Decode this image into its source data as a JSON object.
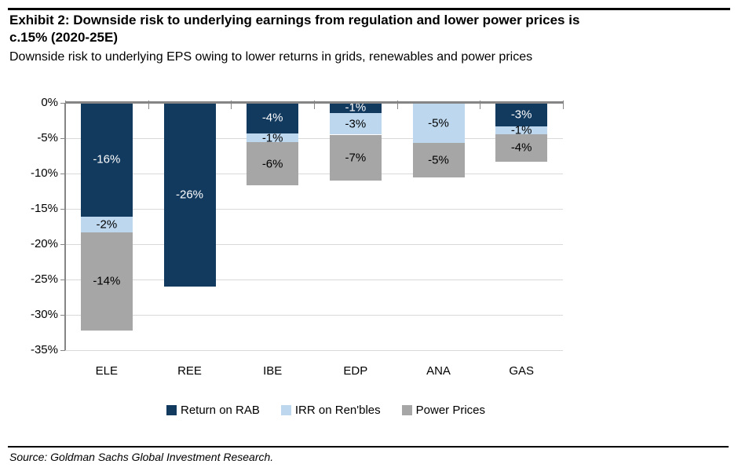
{
  "header": {
    "title_line1": "Exhibit 2: Downside risk to underlying earnings from regulation and lower power prices is",
    "title_line2": "c.15% (2020-25E)",
    "subtitle": "Downside risk to underlying EPS owing to lower returns in grids, renewables and power prices"
  },
  "chart_data": {
    "type": "bar",
    "stacked": true,
    "title": "Downside risk to underlying EPS owing to lower returns in grids, renewables and power prices",
    "categories": [
      "ELE",
      "REE",
      "IBE",
      "EDP",
      "ANA",
      "GAS"
    ],
    "series": [
      {
        "name": "Return on RAB",
        "color": "#12395E",
        "values": [
          -16,
          -26,
          -4,
          -1,
          0,
          -3
        ]
      },
      {
        "name": "IRR on Ren'bles",
        "color": "#BDD7EE",
        "values": [
          -2,
          0,
          -1,
          -3,
          -5,
          -1
        ]
      },
      {
        "name": "Power Prices",
        "color": "#A6A6A6",
        "values": [
          -14,
          0,
          -6,
          -7,
          -5,
          -4
        ]
      }
    ],
    "bars": [
      {
        "category": "ELE",
        "segments": [
          {
            "series": "Return on RAB",
            "label": "-16%",
            "value": -16,
            "visual_pct": 16.1,
            "color": "#12395E",
            "label_color": "#FFFFFF"
          },
          {
            "series": "IRR on Ren'bles",
            "label": "-2%",
            "value": -2,
            "visual_pct": 2.2,
            "color": "#BDD7EE",
            "label_color": "#000000"
          },
          {
            "series": "Power Prices",
            "label": "-14%",
            "value": -14,
            "visual_pct": 13.9,
            "color": "#A6A6A6",
            "label_color": "#000000"
          }
        ]
      },
      {
        "category": "REE",
        "segments": [
          {
            "series": "Return on RAB",
            "label": "-26%",
            "value": -26,
            "visual_pct": 26.0,
            "color": "#12395E",
            "label_color": "#FFFFFF"
          }
        ]
      },
      {
        "category": "IBE",
        "segments": [
          {
            "series": "Return on RAB",
            "label": "-4%",
            "value": -4,
            "visual_pct": 4.3,
            "color": "#12395E",
            "label_color": "#FFFFFF"
          },
          {
            "series": "IRR on Ren'bles",
            "label": "-1%",
            "value": -1,
            "visual_pct": 1.3,
            "color": "#BDD7EE",
            "label_color": "#000000"
          },
          {
            "series": "Power Prices",
            "label": "-6%",
            "value": -6,
            "visual_pct": 6.1,
            "color": "#A6A6A6",
            "label_color": "#000000"
          }
        ]
      },
      {
        "category": "EDP",
        "segments": [
          {
            "series": "Return on RAB",
            "label": "-1%",
            "value": -1,
            "visual_pct": 1.4,
            "color": "#12395E",
            "label_color": "#FFFFFF"
          },
          {
            "series": "IRR on Ren'bles",
            "label": "-3%",
            "value": -3,
            "visual_pct": 3.1,
            "color": "#BDD7EE",
            "label_color": "#000000"
          },
          {
            "series": "Power Prices",
            "label": "-7%",
            "value": -7,
            "visual_pct": 6.5,
            "color": "#A6A6A6",
            "label_color": "#000000"
          }
        ]
      },
      {
        "category": "ANA",
        "segments": [
          {
            "series": "IRR on Ren'bles",
            "label": "-5%",
            "value": -5,
            "visual_pct": 5.7,
            "color": "#BDD7EE",
            "label_color": "#000000"
          },
          {
            "series": "Power Prices",
            "label": "-5%",
            "value": -5,
            "visual_pct": 4.9,
            "color": "#A6A6A6",
            "label_color": "#000000"
          }
        ]
      },
      {
        "category": "GAS",
        "segments": [
          {
            "series": "Return on RAB",
            "label": "-3%",
            "value": -3,
            "visual_pct": 3.3,
            "color": "#12395E",
            "label_color": "#FFFFFF"
          },
          {
            "series": "IRR on Ren'bles",
            "label": "-1%",
            "value": -1,
            "visual_pct": 1.1,
            "color": "#BDD7EE",
            "label_color": "#000000"
          },
          {
            "series": "Power Prices",
            "label": "-4%",
            "value": -4,
            "visual_pct": 3.9,
            "color": "#A6A6A6",
            "label_color": "#000000"
          }
        ]
      }
    ],
    "y_axis": {
      "min": -35,
      "max": 0,
      "step": 5,
      "tick_labels": [
        "0%",
        "-5%",
        "-10%",
        "-15%",
        "-20%",
        "-25%",
        "-30%",
        "-35%"
      ]
    },
    "grid": true,
    "legend_position": "bottom"
  },
  "legend": {
    "items": [
      {
        "label": "Return on RAB",
        "color": "#12395E"
      },
      {
        "label": "IRR on Ren'bles",
        "color": "#BDD7EE"
      },
      {
        "label": "Power Prices",
        "color": "#A6A6A6"
      }
    ]
  },
  "footer": {
    "source": "Source: Goldman Sachs Global Investment Research."
  },
  "colors": {
    "navy": "#12395E",
    "light_blue": "#BDD7EE",
    "gray": "#A6A6A6",
    "gridline": "#D9D9D9",
    "axis": "#858585",
    "rule": "#000000",
    "background": "#FFFFFF"
  }
}
